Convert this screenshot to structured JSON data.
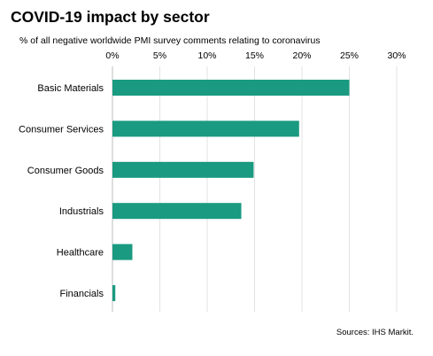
{
  "chart_data": {
    "type": "bar",
    "orientation": "horizontal",
    "title": "COVID-19 impact by sector",
    "subtitle": "% of all negative  worldwide PMI survey comments relating to coronavirus",
    "categories": [
      "Basic Materials",
      "Consumer Services",
      "Consumer Goods",
      "Industrials",
      "Healthcare",
      "Financials"
    ],
    "values": [
      25.0,
      19.7,
      14.9,
      13.6,
      2.1,
      0.3
    ],
    "xlim": [
      0,
      30
    ],
    "x_ticks": [
      "0%",
      "5%",
      "10%",
      "15%",
      "20%",
      "25%",
      "30%"
    ],
    "x_tick_values": [
      0,
      5,
      10,
      15,
      20,
      25,
      30
    ],
    "x_axis_position": "top",
    "grid": true,
    "bar_color": "#1a9a80",
    "source": "Sources: IHS Markit."
  }
}
